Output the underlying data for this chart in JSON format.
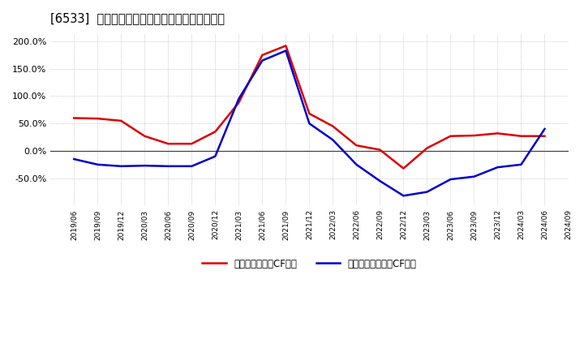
{
  "title": "[6533]  有利子負債キャッシュフロー比率の推移",
  "dates": [
    "2019/06",
    "2019/09",
    "2019/12",
    "2020/03",
    "2020/06",
    "2020/09",
    "2020/12",
    "2021/03",
    "2021/06",
    "2021/09",
    "2021/12",
    "2022/03",
    "2022/06",
    "2022/09",
    "2022/12",
    "2023/03",
    "2023/06",
    "2023/09",
    "2023/12",
    "2024/03",
    "2024/06",
    "2024/09"
  ],
  "operating_cf_ratio": [
    60.0,
    59.0,
    55.0,
    27.0,
    13.0,
    13.0,
    35.0,
    88.0,
    175.0,
    192.0,
    68.0,
    45.0,
    10.0,
    2.0,
    -32.0,
    5.0,
    27.0,
    28.0,
    32.0,
    27.0,
    27.0,
    null
  ],
  "free_cf_ratio": [
    -15.0,
    -25.0,
    -28.0,
    -27.0,
    -28.0,
    -28.0,
    -10.0,
    95.0,
    165.0,
    183.0,
    50.0,
    20.0,
    -25.0,
    -55.0,
    -82.0,
    -75.0,
    -52.0,
    -47.0,
    -30.0,
    -25.0,
    40.0,
    null
  ],
  "red_color": "#dd0000",
  "blue_color": "#0000cc",
  "background_color": "#ffffff",
  "grid_color": "#bbbbbb",
  "legend_label_red": "有利子負債営業CF比率",
  "legend_label_blue": "有利子負債フリーCF比率",
  "ylim": [
    -100,
    215
  ],
  "yticks": [
    -50.0,
    0.0,
    50.0,
    100.0,
    150.0,
    200.0
  ]
}
